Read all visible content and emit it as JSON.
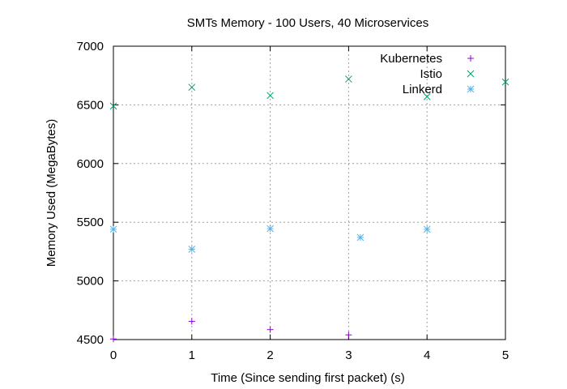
{
  "chart_data": {
    "type": "scatter",
    "title": "SMTs Memory - 100 Users, 40 Microservices",
    "xlabel": "Time (Since sending first packet) (s)",
    "ylabel": "Memory Used (MegaBytes)",
    "xlim": [
      0,
      5
    ],
    "ylim": [
      4500,
      7000
    ],
    "xticks": [
      "0",
      "1",
      "2",
      "3",
      "4",
      "5"
    ],
    "yticks": [
      "4500",
      "5000",
      "5500",
      "6000",
      "6500",
      "7000"
    ],
    "grid": true,
    "legend_position": "top-right",
    "series": [
      {
        "name": "Kubernetes",
        "marker": "plus",
        "color": "#9400d3",
        "points": [
          [
            0,
            4505
          ],
          [
            1,
            4655
          ],
          [
            2,
            4585
          ],
          [
            3,
            4540
          ]
        ]
      },
      {
        "name": "Istio",
        "marker": "cross",
        "color": "#009e73",
        "points": [
          [
            0,
            6490
          ],
          [
            1,
            6650
          ],
          [
            2,
            6580
          ],
          [
            3,
            6720
          ],
          [
            4,
            6570
          ],
          [
            5,
            6695
          ]
        ]
      },
      {
        "name": "Linkerd",
        "marker": "star",
        "color": "#56b4e9",
        "points": [
          [
            0,
            5440
          ],
          [
            1,
            5270
          ],
          [
            2,
            5445
          ],
          [
            3.15,
            5370
          ],
          [
            4,
            5440
          ]
        ]
      }
    ]
  }
}
